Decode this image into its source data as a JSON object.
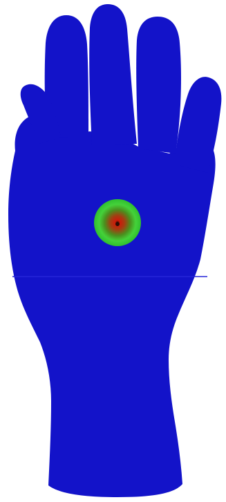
{
  "figure": {
    "subject": "hand",
    "view": "palm",
    "colors": {
      "background": "#ffffff",
      "base": "#1313c9",
      "seam": "#2424d8",
      "map_outer": "#2fbf2f",
      "map_mid": "#44d23a",
      "map_inner": "#4a8f1e",
      "map_hot": "#cc1a0a",
      "map_peak": "#2a0d06"
    }
  }
}
